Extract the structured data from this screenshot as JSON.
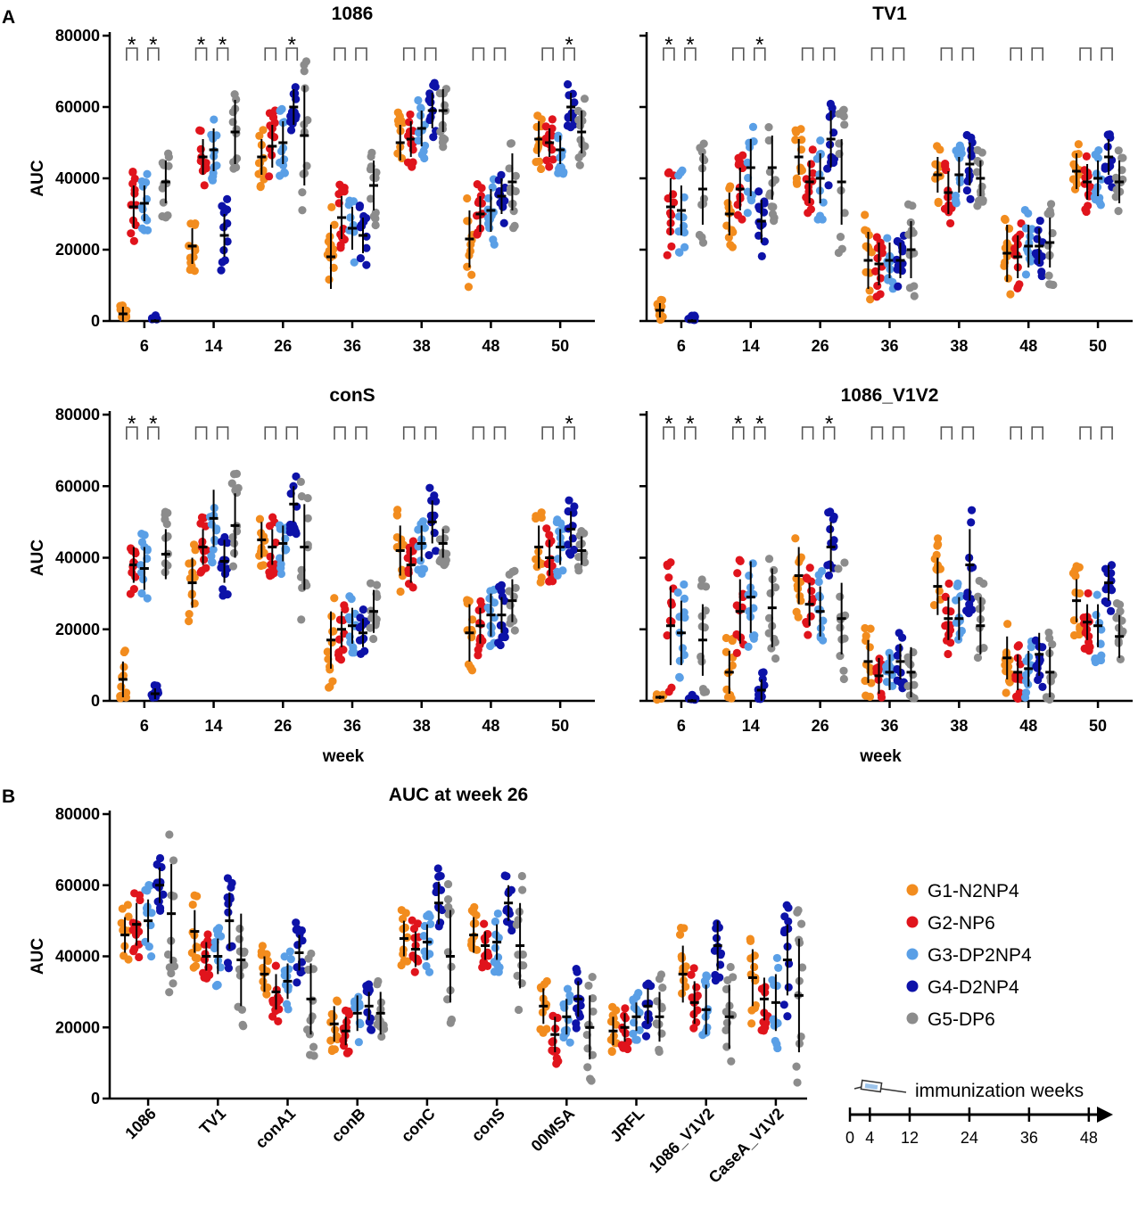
{
  "panel_labels": {
    "a": "A",
    "b": "B"
  },
  "group_names": [
    "G1-N2NP4",
    "G2-NP6",
    "G3-DP2NP4",
    "G4-D2NP4",
    "G5-DP6"
  ],
  "group_colors": [
    "#f28c1e",
    "#e0141c",
    "#5a9fe6",
    "#0d12a8",
    "#8c8c8c"
  ],
  "x_axis_label": "week",
  "y_axis_label": "AUC",
  "timeline": {
    "label": "immunization weeks",
    "ticks": [
      "0",
      "4",
      "12",
      "24",
      "36",
      "48"
    ],
    "ticks_num": [
      0,
      4,
      12,
      24,
      36,
      48
    ],
    "max": 50
  },
  "chart_data": [
    {
      "id": "p1086",
      "type": "scatter",
      "title": "1086",
      "categories": [
        "6",
        "14",
        "26",
        "36",
        "38",
        "48",
        "50"
      ],
      "ylim": [
        0,
        80000
      ],
      "yticks": [
        0,
        20000,
        40000,
        60000,
        80000
      ],
      "show_ytick_labels": true,
      "show_xlabel": false,
      "significance": [
        [
          "*",
          "*"
        ],
        [
          "*",
          "*"
        ],
        [
          "",
          "*"
        ],
        [
          "",
          ""
        ],
        [
          "",
          ""
        ],
        [
          "",
          ""
        ],
        [
          "",
          "*"
        ]
      ],
      "series_means": [
        [
          2000,
          21000,
          46000,
          18000,
          50000,
          23000,
          51000
        ],
        [
          32000,
          46000,
          49000,
          29000,
          51000,
          30000,
          50000
        ],
        [
          33000,
          48000,
          50000,
          26000,
          54000,
          31000,
          48000
        ],
        [
          0,
          24000,
          60000,
          24000,
          59000,
          35000,
          60000
        ],
        [
          39000,
          53000,
          52000,
          38000,
          59000,
          39000,
          53000
        ]
      ],
      "series_sd": [
        [
          2000,
          5000,
          5000,
          9000,
          5000,
          8000,
          5000
        ],
        [
          6000,
          5000,
          6000,
          6000,
          5000,
          5000,
          4000
        ],
        [
          5000,
          6000,
          6000,
          6000,
          5000,
          6000,
          4000
        ],
        [
          500,
          6000,
          5000,
          5000,
          5000,
          5000,
          4000
        ],
        [
          6000,
          9000,
          14000,
          7000,
          6000,
          8000,
          6000
        ]
      ]
    },
    {
      "id": "pTV1",
      "type": "scatter",
      "title": "TV1",
      "categories": [
        "6",
        "14",
        "26",
        "36",
        "38",
        "48",
        "50"
      ],
      "ylim": [
        0,
        80000
      ],
      "yticks": [
        0,
        20000,
        40000,
        60000,
        80000
      ],
      "show_ytick_labels": false,
      "show_xlabel": false,
      "significance": [
        [
          "*",
          "*"
        ],
        [
          "",
          "*"
        ],
        [
          "",
          ""
        ],
        [
          "",
          ""
        ],
        [
          "",
          ""
        ],
        [
          "",
          ""
        ],
        [
          "",
          ""
        ]
      ],
      "series_means": [
        [
          3000,
          30000,
          46000,
          17000,
          41000,
          19000,
          42000
        ],
        [
          32000,
          37000,
          39000,
          16000,
          36000,
          18000,
          39000
        ],
        [
          31000,
          43000,
          40000,
          17000,
          41000,
          21000,
          40000
        ],
        [
          0,
          28000,
          51000,
          17000,
          44000,
          21000,
          46000
        ],
        [
          37000,
          43000,
          39000,
          20000,
          40000,
          22000,
          39000
        ]
      ],
      "series_sd": [
        [
          2000,
          6000,
          5000,
          8000,
          5000,
          8000,
          5000
        ],
        [
          8000,
          6000,
          6000,
          6000,
          6000,
          6000,
          5000
        ],
        [
          7000,
          8000,
          7000,
          5000,
          5000,
          6000,
          5000
        ],
        [
          500,
          6000,
          8000,
          5000,
          6000,
          5000,
          5000
        ],
        [
          10000,
          9000,
          12000,
          8000,
          5000,
          7000,
          6000
        ]
      ]
    },
    {
      "id": "pconS",
      "type": "scatter",
      "title": "conS",
      "categories": [
        "6",
        "14",
        "26",
        "36",
        "38",
        "48",
        "50"
      ],
      "ylim": [
        0,
        80000
      ],
      "yticks": [
        0,
        20000,
        40000,
        60000,
        80000
      ],
      "show_ytick_labels": true,
      "show_xlabel": true,
      "significance": [
        [
          "*",
          "*"
        ],
        [
          "",
          ""
        ],
        [
          "",
          ""
        ],
        [
          "",
          ""
        ],
        [
          "",
          ""
        ],
        [
          "",
          ""
        ],
        [
          "",
          "*"
        ]
      ],
      "series_means": [
        [
          6000,
          33000,
          45000,
          17000,
          42000,
          19000,
          43000
        ],
        [
          38000,
          43000,
          43000,
          20000,
          38000,
          21000,
          40000
        ],
        [
          37000,
          51000,
          44000,
          21000,
          44000,
          24000,
          43000
        ],
        [
          2000,
          39000,
          55000,
          19000,
          50000,
          24000,
          48000
        ],
        [
          41000,
          49000,
          43000,
          25000,
          44000,
          28000,
          42000
        ]
      ],
      "series_sd": [
        [
          5000,
          7000,
          5000,
          8000,
          7000,
          8000,
          6000
        ],
        [
          5000,
          5000,
          5000,
          5000,
          5000,
          5000,
          5000
        ],
        [
          6000,
          8000,
          5000,
          5000,
          5000,
          6000,
          5000
        ],
        [
          1500,
          6000,
          5000,
          4000,
          6000,
          5000,
          5000
        ],
        [
          7000,
          9000,
          12000,
          6000,
          4000,
          6000,
          4000
        ]
      ]
    },
    {
      "id": "p1086V1V2",
      "type": "scatter",
      "title": "1086_V1V2",
      "categories": [
        "6",
        "14",
        "26",
        "36",
        "38",
        "48",
        "50"
      ],
      "ylim": [
        0,
        80000
      ],
      "yticks": [
        0,
        20000,
        40000,
        60000,
        80000
      ],
      "show_ytick_labels": false,
      "show_xlabel": true,
      "significance": [
        [
          "*",
          "*"
        ],
        [
          "*",
          "*"
        ],
        [
          "",
          "*"
        ],
        [
          "",
          ""
        ],
        [
          "",
          ""
        ],
        [
          "",
          ""
        ],
        [
          "",
          ""
        ]
      ],
      "series_means": [
        [
          1000,
          8000,
          35000,
          11000,
          32000,
          12000,
          28000
        ],
        [
          21000,
          25000,
          27000,
          7000,
          23000,
          8000,
          22000
        ],
        [
          19000,
          29000,
          25000,
          8000,
          23000,
          9000,
          21000
        ],
        [
          0,
          3000,
          43000,
          11000,
          38000,
          13000,
          33000
        ],
        [
          17000,
          26000,
          23000,
          8000,
          21000,
          8000,
          18000
        ]
      ],
      "series_sd": [
        [
          500,
          6000,
          8000,
          6000,
          8000,
          6000,
          6000
        ],
        [
          11000,
          9000,
          6000,
          5000,
          6000,
          5000,
          5000
        ],
        [
          9000,
          10000,
          7000,
          5000,
          6000,
          5000,
          6000
        ],
        [
          500,
          3000,
          7000,
          5000,
          10000,
          6000,
          5000
        ],
        [
          10000,
          11000,
          10000,
          7000,
          8000,
          7000,
          6000
        ]
      ]
    },
    {
      "id": "pB",
      "type": "scatter",
      "title": "AUC at week 26",
      "categories": [
        "1086",
        "TV1",
        "conA1",
        "conB",
        "conC",
        "conS",
        "00MSA",
        "JRFL",
        "1086_V1V2",
        "CaseA_V1V2"
      ],
      "ylim": [
        0,
        80000
      ],
      "yticks": [
        0,
        20000,
        40000,
        60000,
        80000
      ],
      "show_ytick_labels": true,
      "show_xlabel": false,
      "series_means": [
        [
          46000,
          47000,
          35000,
          21000,
          45000,
          46000,
          26000,
          19000,
          35000,
          34000
        ],
        [
          49000,
          40000,
          30000,
          19000,
          42000,
          43000,
          18000,
          20000,
          27000,
          28000
        ],
        [
          50000,
          40000,
          33000,
          24000,
          44000,
          44000,
          23000,
          23000,
          25000,
          27000
        ],
        [
          60000,
          50000,
          41000,
          26000,
          55000,
          55000,
          28000,
          26000,
          43000,
          39000
        ],
        [
          52000,
          39000,
          28000,
          24000,
          40000,
          43000,
          20000,
          23000,
          23000,
          29000
        ]
      ],
      "series_sd": [
        [
          5000,
          6000,
          5000,
          5000,
          5000,
          5000,
          5000,
          4000,
          8000,
          8000
        ],
        [
          6000,
          4000,
          5000,
          4000,
          5000,
          4000,
          5000,
          4000,
          6000,
          6000
        ],
        [
          6000,
          5000,
          5000,
          5000,
          5000,
          5000,
          5000,
          4000,
          7000,
          8000
        ],
        [
          5000,
          8000,
          5000,
          4000,
          6000,
          5000,
          5000,
          5000,
          7000,
          10000
        ],
        [
          14000,
          13000,
          10000,
          6000,
          13000,
          12000,
          9000,
          7000,
          9000,
          16000
        ]
      ]
    }
  ]
}
